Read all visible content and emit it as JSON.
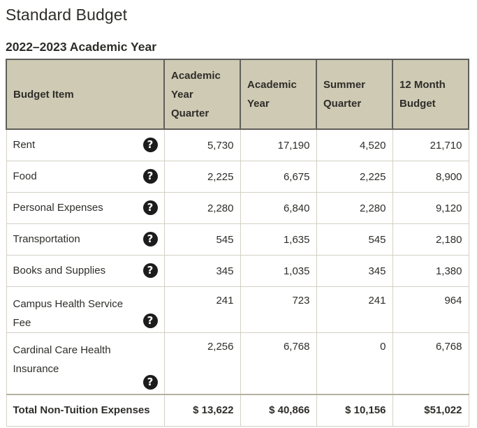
{
  "title": "Standard Budget",
  "subtitle": "2022–2023 Academic Year",
  "headers": {
    "item": "Budget Item",
    "academic_year_quarter": "Academic Year Quarter",
    "academic_year": "Academic Year",
    "summer_quarter": "Summer Quarter",
    "twelve_month": "12 Month Budget"
  },
  "help_glyph": "?",
  "rows": [
    {
      "item": "Rent",
      "ayq": "5,730",
      "ay": "17,190",
      "sq": "4,520",
      "tm": "21,710"
    },
    {
      "item": "Food",
      "ayq": "2,225",
      "ay": "6,675",
      "sq": "2,225",
      "tm": "8,900"
    },
    {
      "item": "Personal Expenses",
      "ayq": "2,280",
      "ay": "6,840",
      "sq": "2,280",
      "tm": "9,120"
    },
    {
      "item": "Transportation",
      "ayq": "545",
      "ay": "1,635",
      "sq": "545",
      "tm": "2,180"
    },
    {
      "item": "Books and Supplies",
      "ayq": "345",
      "ay": "1,035",
      "sq": "345",
      "tm": "1,380"
    },
    {
      "item": "Campus Health Service Fee",
      "ayq": "241",
      "ay": "723",
      "sq": "241",
      "tm": "964"
    },
    {
      "item": "Cardinal Care Health Insurance",
      "ayq": "2,256",
      "ay": "6,768",
      "sq": "0",
      "tm": "6,768"
    }
  ],
  "total": {
    "item": "Total Non-Tuition Expenses",
    "ayq": "$ 13,622",
    "ay": "$ 40,866",
    "sq": "$ 10,156",
    "tm": "$51,022"
  }
}
